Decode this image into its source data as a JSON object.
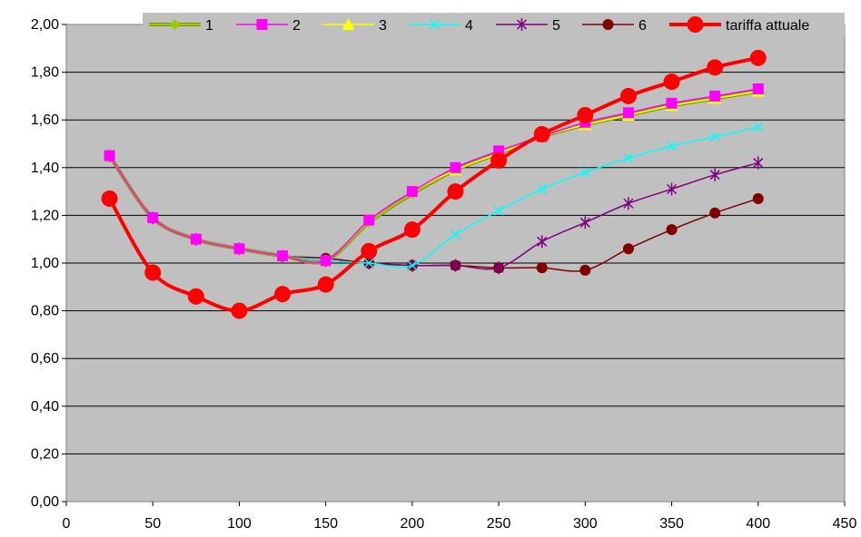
{
  "chart_data": {
    "type": "line",
    "title": "",
    "xlabel": "",
    "ylabel": "",
    "xlim": [
      0,
      450
    ],
    "ylim": [
      0,
      2
    ],
    "x_ticks": [
      "0",
      "50",
      "100",
      "150",
      "200",
      "250",
      "300",
      "350",
      "400",
      "450"
    ],
    "y_ticks": [
      "0,00",
      "0,20",
      "0,40",
      "0,60",
      "0,80",
      "1,00",
      "1,20",
      "1,40",
      "1,60",
      "1,80",
      "2,00"
    ],
    "grid": "horizontal",
    "legend_position": "top",
    "plot_background": "#c0c0c0",
    "x": [
      25,
      50,
      75,
      100,
      125,
      150,
      175,
      200,
      225,
      250,
      275,
      300,
      325,
      350,
      375,
      400
    ],
    "series": [
      {
        "name": "1",
        "color": "#99cc00",
        "marker": "diamond",
        "values": [
          1.45,
          1.19,
          1.1,
          1.06,
          1.03,
          1.01,
          1.17,
          1.29,
          1.39,
          1.46,
          1.53,
          1.58,
          1.62,
          1.66,
          1.69,
          1.72
        ]
      },
      {
        "name": "2",
        "color": "#ff00ff",
        "marker": "square",
        "values": [
          1.45,
          1.19,
          1.1,
          1.06,
          1.03,
          1.01,
          1.18,
          1.3,
          1.4,
          1.47,
          1.53,
          1.59,
          1.63,
          1.67,
          1.7,
          1.73
        ]
      },
      {
        "name": "3",
        "color": "#ffff00",
        "marker": "triangle",
        "values": [
          1.45,
          1.19,
          1.1,
          1.06,
          1.03,
          1.01,
          1.18,
          1.3,
          1.39,
          1.46,
          1.53,
          1.58,
          1.62,
          1.66,
          1.69,
          1.72
        ]
      },
      {
        "name": "4",
        "color": "#00ffff",
        "marker": "x",
        "values": [
          1.45,
          1.19,
          1.1,
          1.06,
          1.03,
          1.01,
          1.0,
          0.99,
          1.12,
          1.22,
          1.31,
          1.38,
          1.44,
          1.49,
          1.53,
          1.57
        ]
      },
      {
        "name": "5",
        "color": "#800080",
        "marker": "star",
        "values": [
          1.45,
          1.19,
          1.1,
          1.06,
          1.03,
          1.01,
          1.0,
          0.99,
          0.99,
          0.98,
          1.09,
          1.17,
          1.25,
          1.31,
          1.37,
          1.42
        ]
      },
      {
        "name": "6",
        "color": "#800000",
        "marker": "circle",
        "values": [
          1.45,
          1.19,
          1.1,
          1.06,
          1.03,
          1.02,
          1.0,
          0.99,
          0.99,
          0.98,
          0.98,
          0.97,
          1.06,
          1.14,
          1.21,
          1.27
        ]
      },
      {
        "name": "tariffa attuale",
        "color": "#ff0000",
        "marker": "circle-large",
        "values": [
          1.27,
          0.96,
          0.86,
          0.8,
          0.87,
          0.91,
          1.05,
          1.14,
          1.3,
          1.43,
          1.54,
          1.62,
          1.7,
          1.76,
          1.82,
          1.86
        ]
      }
    ]
  }
}
